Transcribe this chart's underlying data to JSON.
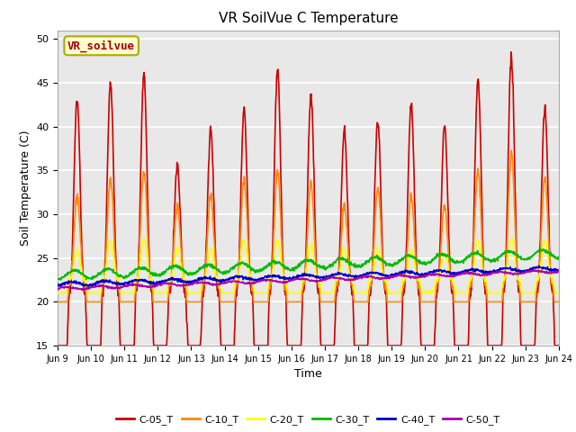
{
  "title": "VR SoilVue C Temperature",
  "xlabel": "Time",
  "ylabel": "Soil Temperature (C)",
  "ylim": [
    15,
    51
  ],
  "yticks": [
    15,
    20,
    25,
    30,
    35,
    40,
    45,
    50
  ],
  "x_labels": [
    "Jun 9",
    "Jun 10",
    "Jun 11",
    "Jun 12",
    "Jun 13",
    "Jun 14",
    "Jun 15",
    "Jun 16",
    "Jun 17",
    "Jun 18",
    "Jun 19",
    "Jun 20",
    "Jun 21",
    "Jun 22",
    "Jun 23",
    "Jun 24"
  ],
  "series_names": [
    "C-05_T",
    "C-10_T",
    "C-20_T",
    "C-30_T",
    "C-40_T",
    "C-50_T"
  ],
  "colors": [
    "#cc0000",
    "#ff8800",
    "#ffff00",
    "#00bb00",
    "#0000cc",
    "#aa00aa"
  ],
  "annotation_text": "VR_soilvue",
  "annotation_color": "#aa0000",
  "annotation_bg": "#ffffcc",
  "annotation_border": "#aaaa00",
  "plot_bg": "#e8e8e8",
  "grid_color": "#ffffff",
  "title_fontsize": 11,
  "axis_fontsize": 9,
  "tick_fontsize": 8,
  "legend_fontsize": 8,
  "n_days": 15,
  "pts_per_day": 96
}
